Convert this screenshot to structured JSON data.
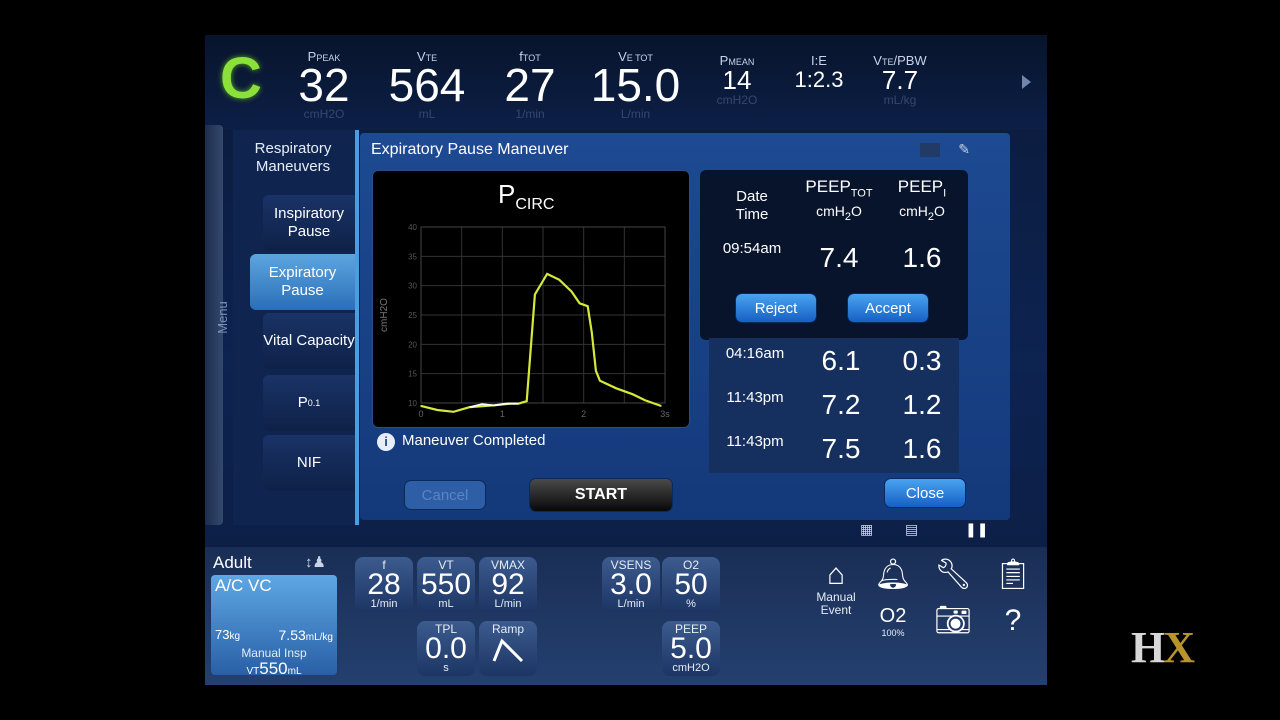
{
  "top": {
    "mode_letter": "C",
    "measurements": [
      {
        "label": "PPEAK",
        "value": "32",
        "unit": "cmH2O"
      },
      {
        "label": "VTE",
        "value": "564",
        "unit": "mL"
      },
      {
        "label": "fTOT",
        "value": "27",
        "unit": "1/min"
      },
      {
        "label": "VE TOT",
        "value": "15.0",
        "unit": "L/min"
      },
      {
        "label": "PMEAN",
        "value": "14",
        "unit": "cmH2O"
      },
      {
        "label": "I:E",
        "value": "1:2.3",
        "unit": ""
      },
      {
        "label": "VTE/PBW",
        "value": "7.7",
        "unit": "mL/kg"
      }
    ]
  },
  "menu_strip_label": "Menu",
  "left_panel": {
    "title": "Respiratory Maneuvers",
    "items": [
      "Inspiratory Pause",
      "Expiratory Pause",
      "Vital Capacity",
      "P0.1",
      "NIF"
    ]
  },
  "dialog": {
    "title": "Expiratory Pause Maneuver",
    "info_text": "Maneuver Completed",
    "cancel_label": "Cancel",
    "start_label": "START",
    "close_label": "Close",
    "reject_label": "Reject",
    "accept_label": "Accept"
  },
  "table": {
    "headers": {
      "col1": "Date Time",
      "col2": "PEEP",
      "col2_sub": "TOT",
      "col2_unit": "cmH2O",
      "col3": "PEEP",
      "col3_sub": "I",
      "col3_unit": "cmH2O"
    },
    "current": {
      "time": "09:54am",
      "peep_tot": "7.4",
      "peep_i": "1.6"
    },
    "history": [
      {
        "time": "04:16am",
        "peep_tot": "6.1",
        "peep_i": "0.3"
      },
      {
        "time": "11:43pm",
        "peep_tot": "7.2",
        "peep_i": "1.2"
      },
      {
        "time": "11:43pm",
        "peep_tot": "7.5",
        "peep_i": "1.6"
      }
    ]
  },
  "chart_data": {
    "type": "line",
    "title": "PCIRC",
    "ylabel": "cmH2O",
    "xlabel": "",
    "xlim": [
      0,
      3
    ],
    "ylim": [
      0,
      40
    ],
    "xticks": [
      "0",
      "1",
      "2",
      "3s"
    ],
    "yticks": [
      "10",
      "15",
      "20",
      "25",
      "30",
      "35",
      "40"
    ],
    "series": [
      {
        "color": "#d6e83a",
        "x": [
          0,
          0.2,
          0.4,
          0.6,
          0.9,
          1.1,
          1.2,
          1.3,
          1.4,
          1.55,
          1.7,
          1.85,
          1.95,
          2.05,
          2.1,
          2.15,
          2.2,
          2.4,
          2.6,
          2.75,
          2.95
        ],
        "y": [
          9.5,
          8.8,
          8.5,
          9.3,
          9.6,
          9.9,
          9.9,
          10.3,
          28.5,
          32,
          31,
          29,
          27,
          26.5,
          22,
          15.5,
          13.8,
          12.5,
          11.5,
          10.5,
          9.5
        ]
      }
    ]
  },
  "status_icons": [
    "grid-icon",
    "table-icon",
    "pause-icon"
  ],
  "bottom": {
    "patient_type": "Adult",
    "mode": "A/C VC",
    "weight": "73",
    "weight_unit": "kg",
    "ml_per_kg": "7.53",
    "ml_per_kg_unit": "mL/kg",
    "manual_insp_label": "Manual Insp",
    "manual_insp_value": "550",
    "manual_insp_prefix": "VT",
    "manual_insp_unit": "mL",
    "settings": [
      {
        "label": "f",
        "value": "28",
        "unit": "1/min"
      },
      {
        "label": "VT",
        "value": "550",
        "unit": "mL"
      },
      {
        "label": "VMAX",
        "value": "92",
        "unit": "L/min"
      },
      {
        "label": "VSENS",
        "value": "3.0",
        "unit": "L/min"
      },
      {
        "label": "O2",
        "value": "50",
        "unit": "%"
      },
      {
        "label": "TPL",
        "value": "0.0",
        "unit": "s"
      },
      {
        "label": "Ramp",
        "value": "",
        "unit": ""
      },
      {
        "label": "PEEP",
        "value": "5.0",
        "unit": "cmH2O"
      }
    ],
    "manual_event_label": "Manual Event",
    "o2_label": "O2",
    "o2_sub": "100%",
    "help_label": "?"
  },
  "watermark": {
    "h": "H",
    "x": "X"
  }
}
